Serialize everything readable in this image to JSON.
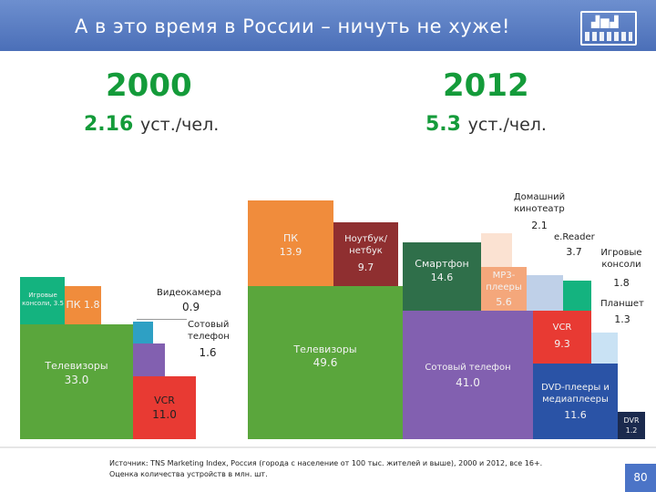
{
  "header": {
    "title": "А в это время в России – ничуть не хуже!"
  },
  "left": {
    "year": "2000",
    "per_value": "2.16",
    "per_unit": "уст./чел."
  },
  "right": {
    "year": "2012",
    "per_value": "5.3",
    "per_unit": "уст./чел."
  },
  "blocks_2000": {
    "tv": {
      "name": "Телевизоры",
      "value": "33.0",
      "color": "#5aa63c"
    },
    "console": {
      "name": "Игровые консоли, 3.5",
      "color": "#14b37f"
    },
    "pc": {
      "name": "ПК",
      "value": "1.8",
      "color": "#f08c3c"
    },
    "vcr": {
      "name": "VCR",
      "value": "11.0",
      "color": "#e83a33"
    },
    "mobile": {
      "name": "Сотовый телефон",
      "value": "1.6",
      "color": "#8260b0"
    },
    "camcorder": {
      "name": "Видеокамера",
      "value": "0.9",
      "color": "#2ea0c4"
    }
  },
  "blocks_2012": {
    "tv": {
      "name": "Телевизоры",
      "value": "49.6",
      "color": "#5aa63c"
    },
    "pc": {
      "name": "ПК",
      "value": "13.9",
      "color": "#f08c3c"
    },
    "laptop": {
      "name": "Ноутбук/ нетбук",
      "value": "9.7",
      "color": "#8f2f30"
    },
    "smartphone": {
      "name": "Смартфон",
      "value": "14.6",
      "color": "#2f6f4a"
    },
    "mp3": {
      "name": "МР3-плееры",
      "value": "5.6",
      "color": "#f4a77b"
    },
    "home_theater": {
      "name": "Домашний кинотеатр",
      "value": "2.1",
      "color": "#fbe2d2"
    },
    "ereader": {
      "name": "e.Reader",
      "value": "3.7",
      "color": "#bfd0e8"
    },
    "consoles": {
      "name": "Игровые консоли",
      "value": "1.8",
      "color": "#14b37f"
    },
    "mobile": {
      "name": "Сотовый телефон",
      "value": "41.0",
      "color": "#8260b0"
    },
    "vcr": {
      "name": "VCR",
      "value": "9.3",
      "color": "#e83a33"
    },
    "tablet": {
      "name": "Планшет",
      "value": "1.3",
      "color": "#c9e2f4"
    },
    "dvd": {
      "name": "DVD-плееры и медиаплееры",
      "value": "11.6",
      "color": "#2a53a6"
    },
    "dvr": {
      "name": "DVR",
      "value": "1.2",
      "color": "#1b2a4e"
    }
  },
  "footer": {
    "source_line1": "Источник: TNS Marketing Index, Россия (города с население от 100 тыс. жителей и выше), 2000 и 2012, все 16+.",
    "source_line2": "Оценка количества устройств в млн. шт.",
    "page_number": "80"
  },
  "colors": {
    "header_bg": "#4b6fb8",
    "accent_green": "#149b3a",
    "page_badge": "#4b74c7"
  }
}
